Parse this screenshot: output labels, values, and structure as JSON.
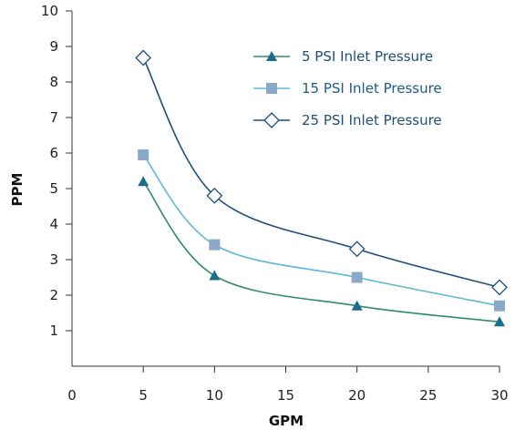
{
  "chart_data": {
    "type": "line",
    "xlabel": "GPM",
    "ylabel": "PPM",
    "xlim": [
      0,
      30
    ],
    "ylim": [
      0,
      10
    ],
    "x_ticks": [
      0,
      5,
      10,
      15,
      20,
      25,
      30
    ],
    "y_ticks": [
      1,
      2,
      3,
      4,
      5,
      6,
      7,
      8,
      9,
      10
    ],
    "grid": false,
    "legend_position": "top-right",
    "series": [
      {
        "name": "5 PSI Inlet Pressure",
        "marker": "triangle",
        "color": "#1a6e8a",
        "line_color": "#2e8b6e",
        "points": [
          [
            5,
            5.2
          ],
          [
            10,
            2.55
          ],
          [
            20,
            1.7
          ],
          [
            30,
            1.25
          ]
        ]
      },
      {
        "name": "15 PSI Inlet Pressure",
        "marker": "square",
        "color": "#8aa8c8",
        "line_color": "#5bb8d6",
        "points": [
          [
            5,
            5.95
          ],
          [
            10,
            3.42
          ],
          [
            20,
            2.5
          ],
          [
            30,
            1.7
          ]
        ]
      },
      {
        "name": "25 PSI Inlet Pressure",
        "marker": "diamond",
        "color": "#1d4f7a",
        "line_color": "#1d4f7a",
        "points": [
          [
            5,
            8.68
          ],
          [
            10,
            4.8
          ],
          [
            20,
            3.3
          ],
          [
            30,
            2.22
          ]
        ]
      }
    ]
  }
}
